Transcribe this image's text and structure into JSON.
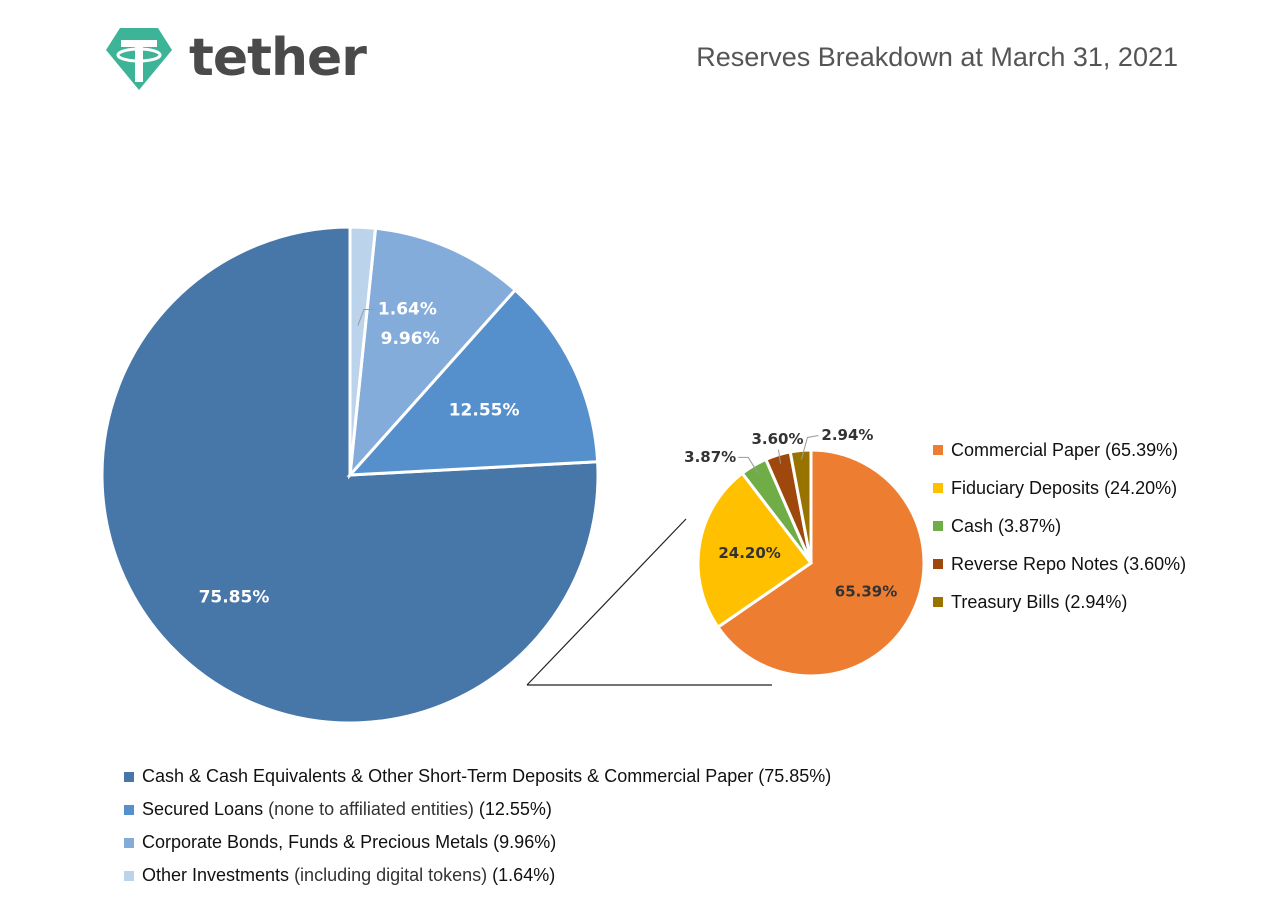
{
  "header": {
    "brand": "tether",
    "logo_icon": "tether-logo-icon",
    "title": "Reserves Breakdown at March 31, 2021"
  },
  "chart_data": [
    {
      "type": "pie",
      "title": "",
      "slices": [
        {
          "label": "Cash & Cash Equivalents & Other Short-Term Deposits & Commercial Paper",
          "note": "",
          "value": 75.85,
          "value_label": "75.85%",
          "legend_suffix": "(75.85%)",
          "color": "#4776a8"
        },
        {
          "label": "Secured Loans",
          "note": "(none to affiliated entities)",
          "value": 12.55,
          "value_label": "12.55%",
          "legend_suffix": "(12.55%)",
          "color": "#5690cc"
        },
        {
          "label": "Corporate Bonds, Funds & Precious Metals",
          "note": "",
          "value": 9.96,
          "value_label": "9.96%",
          "legend_suffix": "(9.96%)",
          "color": "#84acdb"
        },
        {
          "label": "Other Investments",
          "note": "(including digital tokens)",
          "value": 1.64,
          "value_label": "1.64%",
          "legend_suffix": "(1.64%)",
          "color": "#bcd3ec"
        }
      ]
    },
    {
      "type": "pie",
      "title": "",
      "slices": [
        {
          "label": "Commercial Paper",
          "value": 65.39,
          "value_label": "65.39%",
          "legend_suffix": "(65.39%)",
          "color": "#ed7d31"
        },
        {
          "label": "Fiduciary Deposits",
          "value": 24.2,
          "value_label": "24.20%",
          "legend_suffix": "(24.20%)",
          "color": "#ffc000"
        },
        {
          "label": "Cash",
          "value": 3.87,
          "value_label": "3.87%",
          "legend_suffix": "(3.87%)",
          "color": "#70ad47"
        },
        {
          "label": "Reverse Repo Notes",
          "value": 3.6,
          "value_label": "3.60%",
          "legend_suffix": "(3.60%)",
          "color": "#9e480e"
        },
        {
          "label": "Treasury Bills",
          "value": 2.94,
          "value_label": "2.94%",
          "legend_suffix": "(2.94%)",
          "color": "#997300"
        }
      ]
    }
  ]
}
